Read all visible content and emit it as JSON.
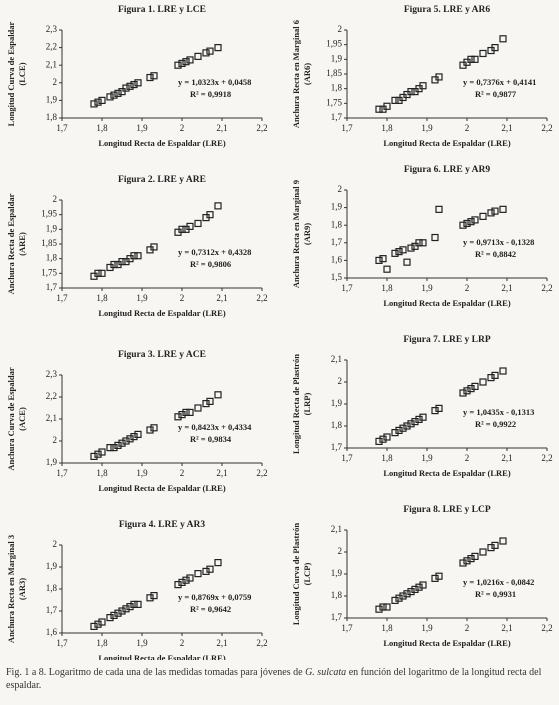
{
  "chart_data": [
    {
      "type": "scatter",
      "title": "Figura 1. LRE y LCE",
      "xlabel": "Longitud Recta de Espaldar (LRE)",
      "ylabel": [
        "Longitud Curva de Espaldar",
        "(LCE)"
      ],
      "equation": "y = 1,0323x + 0,0458",
      "r2": "R² = 0,9918",
      "x": [
        1.78,
        1.79,
        1.8,
        1.82,
        1.83,
        1.84,
        1.85,
        1.86,
        1.87,
        1.88,
        1.89,
        1.92,
        1.93,
        1.99,
        2.0,
        2.01,
        2.02,
        2.04,
        2.06,
        2.07,
        2.09
      ],
      "values": [
        1.88,
        1.89,
        1.9,
        1.92,
        1.93,
        1.94,
        1.95,
        1.97,
        1.98,
        1.99,
        2.0,
        2.03,
        2.04,
        2.1,
        2.11,
        2.12,
        2.13,
        2.15,
        2.17,
        2.18,
        2.2
      ],
      "xlim": [
        1.7,
        2.2
      ],
      "xticks": [
        {
          "value": 1.7,
          "label": "1,7"
        },
        {
          "value": 1.8,
          "label": "1,8"
        },
        {
          "value": 1.9,
          "label": "1,9"
        },
        2,
        {
          "value": 2.1,
          "label": "2,1"
        },
        {
          "value": 2.2,
          "label": "2,2"
        }
      ],
      "ylim": [
        1.8,
        2.3
      ],
      "yticks": [
        {
          "value": 1.8,
          "label": "1,8"
        },
        {
          "value": 1.9,
          "label": "1,9"
        },
        2,
        {
          "value": 2.1,
          "label": "2,1"
        },
        {
          "value": 2.2,
          "label": "2,2"
        },
        {
          "value": 2.3,
          "label": "2,3"
        }
      ],
      "color": "#222222"
    },
    {
      "type": "scatter",
      "title": "Figura 2. LRE y ARE",
      "xlabel": "Longitud Recta de Espaldar (LRE)",
      "ylabel": [
        "Anchura Recta de Espaldar",
        "(ARE)"
      ],
      "equation": "y = 0,7312x + 0,4328",
      "r2": "R² = 0,9806",
      "x": [
        1.78,
        1.79,
        1.8,
        1.82,
        1.83,
        1.84,
        1.85,
        1.86,
        1.87,
        1.88,
        1.89,
        1.92,
        1.93,
        1.99,
        2.0,
        2.01,
        2.02,
        2.04,
        2.06,
        2.07,
        2.09
      ],
      "values": [
        1.74,
        1.75,
        1.75,
        1.77,
        1.78,
        1.78,
        1.79,
        1.79,
        1.8,
        1.81,
        1.81,
        1.83,
        1.84,
        1.89,
        1.9,
        1.9,
        1.91,
        1.92,
        1.94,
        1.95,
        1.98
      ],
      "xlim": [
        1.7,
        2.2
      ],
      "xticks": [
        {
          "value": 1.7,
          "label": "1,7"
        },
        {
          "value": 1.8,
          "label": "1,8"
        },
        {
          "value": 1.9,
          "label": "1,9"
        },
        2,
        {
          "value": 2.1,
          "label": "2,1"
        },
        {
          "value": 2.2,
          "label": "2,2"
        }
      ],
      "ylim": [
        1.7,
        2.0
      ],
      "yticks": [
        {
          "value": 1.7,
          "label": "1,7"
        },
        {
          "value": 1.75,
          "label": "1,75"
        },
        {
          "value": 1.8,
          "label": "1,8"
        },
        {
          "value": 1.85,
          "label": "1,85"
        },
        {
          "value": 1.9,
          "label": "1,9"
        },
        {
          "value": 1.95,
          "label": "1,95"
        },
        2
      ],
      "color": "#222222"
    },
    {
      "type": "scatter",
      "title": "Figura 3. LRE y ACE",
      "xlabel": "Longitud Recta de Espaldar (LRE)",
      "ylabel": [
        "Anchura Curva de Espaldar",
        "(ACE)"
      ],
      "equation": "y = 0,8423x + 0,4334",
      "r2": "R² = 0,9834",
      "x": [
        1.78,
        1.79,
        1.8,
        1.82,
        1.83,
        1.84,
        1.85,
        1.86,
        1.87,
        1.88,
        1.89,
        1.92,
        1.93,
        1.99,
        2.0,
        2.01,
        2.02,
        2.04,
        2.06,
        2.07,
        2.09
      ],
      "values": [
        1.93,
        1.94,
        1.95,
        1.97,
        1.97,
        1.98,
        1.99,
        2.0,
        2.01,
        2.02,
        2.03,
        2.05,
        2.06,
        2.11,
        2.12,
        2.13,
        2.13,
        2.15,
        2.17,
        2.18,
        2.21
      ],
      "xlim": [
        1.7,
        2.2
      ],
      "xticks": [
        {
          "value": 1.7,
          "label": "1,7"
        },
        {
          "value": 1.8,
          "label": "1,8"
        },
        {
          "value": 1.9,
          "label": "1,9"
        },
        2,
        {
          "value": 2.1,
          "label": "2,1"
        },
        {
          "value": 2.2,
          "label": "2,2"
        }
      ],
      "ylim": [
        1.9,
        2.3
      ],
      "yticks": [
        {
          "value": 1.9,
          "label": "1,9"
        },
        2,
        {
          "value": 2.1,
          "label": "2,1"
        },
        {
          "value": 2.2,
          "label": "2,2"
        },
        {
          "value": 2.3,
          "label": "2,3"
        }
      ],
      "color": "#222222"
    },
    {
      "type": "scatter",
      "title": "Figura 4. LRE y AR3",
      "xlabel": "Longitud Recta de Espaldar (LRE)",
      "ylabel": [
        "Anchura Recta en Marginal 3",
        "(AR3)"
      ],
      "equation": "y = 0,8769x + 0,0759",
      "r2": "R² = 0,9642",
      "x": [
        1.78,
        1.79,
        1.8,
        1.82,
        1.83,
        1.84,
        1.85,
        1.86,
        1.87,
        1.88,
        1.89,
        1.92,
        1.93,
        1.99,
        2.0,
        2.01,
        2.02,
        2.04,
        2.06,
        2.07,
        2.09
      ],
      "values": [
        1.63,
        1.64,
        1.65,
        1.67,
        1.68,
        1.69,
        1.7,
        1.71,
        1.72,
        1.73,
        1.73,
        1.76,
        1.77,
        1.82,
        1.83,
        1.84,
        1.85,
        1.87,
        1.88,
        1.89,
        1.92
      ],
      "xlim": [
        1.7,
        2.2
      ],
      "xticks": [
        {
          "value": 1.7,
          "label": "1,7"
        },
        {
          "value": 1.8,
          "label": "1,8"
        },
        {
          "value": 1.9,
          "label": "1,9"
        },
        2,
        {
          "value": 2.1,
          "label": "2,1"
        },
        {
          "value": 2.2,
          "label": "2,2"
        }
      ],
      "ylim": [
        1.6,
        2.0
      ],
      "yticks": [
        {
          "value": 1.6,
          "label": "1,6"
        },
        {
          "value": 1.7,
          "label": "1,7"
        },
        {
          "value": 1.8,
          "label": "1,8"
        },
        {
          "value": 1.9,
          "label": "1,9"
        },
        2
      ],
      "color": "#222222"
    },
    {
      "type": "scatter",
      "title": "Figura 5. LRE y AR6",
      "xlabel": "Longitud Recta de Espaldar (LRE)",
      "ylabel": [
        "Anchura Recta en Marginal 6",
        "(AR6)"
      ],
      "equation": "y = 0,7376x + 0,4141",
      "r2": "R² = 0,9877",
      "x": [
        1.78,
        1.79,
        1.8,
        1.82,
        1.83,
        1.84,
        1.85,
        1.86,
        1.87,
        1.88,
        1.89,
        1.92,
        1.93,
        1.99,
        2.0,
        2.01,
        2.02,
        2.04,
        2.06,
        2.07,
        2.09
      ],
      "values": [
        1.73,
        1.73,
        1.74,
        1.76,
        1.76,
        1.77,
        1.78,
        1.79,
        1.79,
        1.8,
        1.81,
        1.83,
        1.84,
        1.88,
        1.89,
        1.9,
        1.9,
        1.92,
        1.93,
        1.94,
        1.97
      ],
      "xlim": [
        1.7,
        2.2
      ],
      "xticks": [
        {
          "value": 1.7,
          "label": "1,7"
        },
        {
          "value": 1.8,
          "label": "1,8"
        },
        {
          "value": 1.9,
          "label": "1,9"
        },
        2,
        {
          "value": 2.1,
          "label": "2,1"
        },
        {
          "value": 2.2,
          "label": "2,2"
        }
      ],
      "ylim": [
        1.7,
        2.0
      ],
      "yticks": [
        {
          "value": 1.7,
          "label": "1,7"
        },
        {
          "value": 1.75,
          "label": "1,75"
        },
        {
          "value": 1.8,
          "label": "1,8"
        },
        {
          "value": 1.85,
          "label": "1,85"
        },
        {
          "value": 1.9,
          "label": "1,9"
        },
        {
          "value": 1.95,
          "label": "1,95"
        },
        2
      ],
      "color": "#222222"
    },
    {
      "type": "scatter",
      "title": "Figura 6. LRE y AR9",
      "xlabel": "Longitud Recta de Espaldar (LRE)",
      "ylabel": [
        "Anchura Recta en Marginal 9",
        "(AR9)"
      ],
      "equation": "y = 0,9713x - 0,1328",
      "r2": "R² = 0,8842",
      "x": [
        1.78,
        1.79,
        1.8,
        1.82,
        1.83,
        1.84,
        1.85,
        1.86,
        1.87,
        1.88,
        1.89,
        1.92,
        1.93,
        1.99,
        2.0,
        2.01,
        2.02,
        2.04,
        2.06,
        2.07,
        2.09
      ],
      "values": [
        1.6,
        1.61,
        1.55,
        1.64,
        1.65,
        1.66,
        1.59,
        1.67,
        1.68,
        1.7,
        1.7,
        1.73,
        1.89,
        1.8,
        1.81,
        1.82,
        1.83,
        1.85,
        1.87,
        1.88,
        1.89
      ],
      "xlim": [
        1.7,
        2.2
      ],
      "xticks": [
        {
          "value": 1.7,
          "label": "1,7"
        },
        {
          "value": 1.8,
          "label": "1,8"
        },
        {
          "value": 1.9,
          "label": "1,9"
        },
        2,
        {
          "value": 2.1,
          "label": "2,1"
        },
        {
          "value": 2.2,
          "label": "2,2"
        }
      ],
      "ylim": [
        1.5,
        2.0
      ],
      "yticks": [
        {
          "value": 1.5,
          "label": "1,5"
        },
        {
          "value": 1.6,
          "label": "1,6"
        },
        {
          "value": 1.7,
          "label": "1,7"
        },
        {
          "value": 1.8,
          "label": "1,8"
        },
        {
          "value": 1.9,
          "label": "1,9"
        },
        2
      ],
      "color": "#222222"
    },
    {
      "type": "scatter",
      "title": "Figura 7. LRE y LRP",
      "xlabel": "Longitud Recta de Espaldar (LRE)",
      "ylabel": [
        "Longitud Recta de Plastrón",
        "(LRP)"
      ],
      "equation": "y = 1,0435x - 0,1313",
      "r2": "R² = 0,9922",
      "x": [
        1.78,
        1.79,
        1.8,
        1.82,
        1.83,
        1.84,
        1.85,
        1.86,
        1.87,
        1.88,
        1.89,
        1.92,
        1.93,
        1.99,
        2.0,
        2.01,
        2.02,
        2.04,
        2.06,
        2.07,
        2.09
      ],
      "values": [
        1.73,
        1.74,
        1.75,
        1.77,
        1.78,
        1.79,
        1.8,
        1.81,
        1.82,
        1.83,
        1.84,
        1.87,
        1.88,
        1.95,
        1.96,
        1.97,
        1.98,
        2.0,
        2.02,
        2.03,
        2.05
      ],
      "xlim": [
        1.7,
        2.2
      ],
      "xticks": [
        {
          "value": 1.7,
          "label": "1,7"
        },
        {
          "value": 1.8,
          "label": "1,8"
        },
        {
          "value": 1.9,
          "label": "1,9"
        },
        2,
        {
          "value": 2.1,
          "label": "2,1"
        },
        {
          "value": 2.2,
          "label": "2,2"
        }
      ],
      "ylim": [
        1.7,
        2.1
      ],
      "yticks": [
        {
          "value": 1.7,
          "label": "1,7"
        },
        {
          "value": 1.8,
          "label": "1,8"
        },
        {
          "value": 1.9,
          "label": "1,9"
        },
        2,
        {
          "value": 2.1,
          "label": "2,1"
        }
      ],
      "color": "#222222"
    },
    {
      "type": "scatter",
      "title": "Figura 8. LRE y LCP",
      "xlabel": "Longitud Recta de Espaldar (LRE)",
      "ylabel": [
        "Longitud Curva de Plastrón",
        "(LCP)"
      ],
      "equation": "y = 1,0216x - 0,0842",
      "r2": "R² = 0,9931",
      "x": [
        1.78,
        1.79,
        1.8,
        1.82,
        1.83,
        1.84,
        1.85,
        1.86,
        1.87,
        1.88,
        1.89,
        1.92,
        1.93,
        1.99,
        2.0,
        2.01,
        2.02,
        2.04,
        2.06,
        2.07,
        2.09
      ],
      "values": [
        1.74,
        1.75,
        1.75,
        1.78,
        1.79,
        1.8,
        1.81,
        1.82,
        1.83,
        1.84,
        1.85,
        1.88,
        1.89,
        1.95,
        1.96,
        1.97,
        1.98,
        2.0,
        2.02,
        2.03,
        2.05
      ],
      "xlim": [
        1.7,
        2.2
      ],
      "xticks": [
        {
          "value": 1.7,
          "label": "1,7"
        },
        {
          "value": 1.8,
          "label": "1,8"
        },
        {
          "value": 1.9,
          "label": "1,9"
        },
        2,
        {
          "value": 2.1,
          "label": "2,1"
        },
        {
          "value": 2.2,
          "label": "2,2"
        }
      ],
      "ylim": [
        1.7,
        2.1
      ],
      "yticks": [
        {
          "value": 1.7,
          "label": "1,7"
        },
        {
          "value": 1.8,
          "label": "1,8"
        },
        {
          "value": 1.9,
          "label": "1,9"
        },
        2,
        {
          "value": 2.1,
          "label": "2,1"
        }
      ],
      "color": "#222222"
    }
  ],
  "caption": {
    "before": "Fig. 1 a 8. Logaritmo de cada una de las medidas tomadas para jóvenes de ",
    "italic": "G. sulcata",
    "after": " en función del logaritmo de la longitud recta del espaldar."
  }
}
